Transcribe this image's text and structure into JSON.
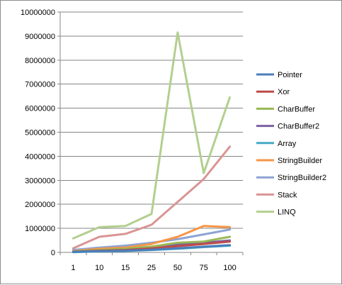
{
  "chart_data": {
    "type": "line",
    "categories": [
      "1",
      "10",
      "15",
      "25",
      "50",
      "75",
      "100"
    ],
    "ylim": [
      0,
      10000000
    ],
    "yticks": [
      0,
      1000000,
      2000000,
      3000000,
      4000000,
      5000000,
      6000000,
      7000000,
      8000000,
      9000000,
      10000000
    ],
    "ytick_labels": [
      "0",
      "1000000",
      "2000000",
      "3000000",
      "4000000",
      "5000000",
      "6000000",
      "7000000",
      "8000000",
      "9000000",
      "10000000"
    ],
    "grid": "horizontal",
    "legend_position": "right",
    "series": [
      {
        "name": "Pointer",
        "color": "#4a7ebb",
        "values": [
          20000,
          50000,
          70000,
          110000,
          170000,
          240000,
          300000
        ]
      },
      {
        "name": "Xor",
        "color": "#be4b48",
        "values": [
          30000,
          70000,
          100000,
          170000,
          260000,
          350000,
          450000
        ]
      },
      {
        "name": "CharBuffer",
        "color": "#98b954",
        "values": [
          40000,
          100000,
          150000,
          240000,
          400000,
          450000,
          650000
        ]
      },
      {
        "name": "CharBuffer2",
        "color": "#7d60a0",
        "values": [
          30000,
          90000,
          130000,
          210000,
          330000,
          400000,
          500000
        ]
      },
      {
        "name": "Array",
        "color": "#46aac5",
        "values": [
          10000,
          40000,
          60000,
          100000,
          150000,
          220000,
          280000
        ]
      },
      {
        "name": "StringBuilder",
        "color": "#f79646",
        "values": [
          50000,
          150000,
          200000,
          350000,
          650000,
          1100000,
          1050000
        ]
      },
      {
        "name": "StringBuilder2",
        "color": "#8da4d2",
        "values": [
          100000,
          200000,
          280000,
          400000,
          550000,
          750000,
          950000
        ]
      },
      {
        "name": "Stack",
        "color": "#d99594",
        "values": [
          170000,
          650000,
          770000,
          1150000,
          2100000,
          3050000,
          4400000
        ]
      },
      {
        "name": "LINQ",
        "color": "#b3cf8f",
        "values": [
          580000,
          1050000,
          1100000,
          1600000,
          9150000,
          3300000,
          6450000
        ]
      }
    ]
  }
}
